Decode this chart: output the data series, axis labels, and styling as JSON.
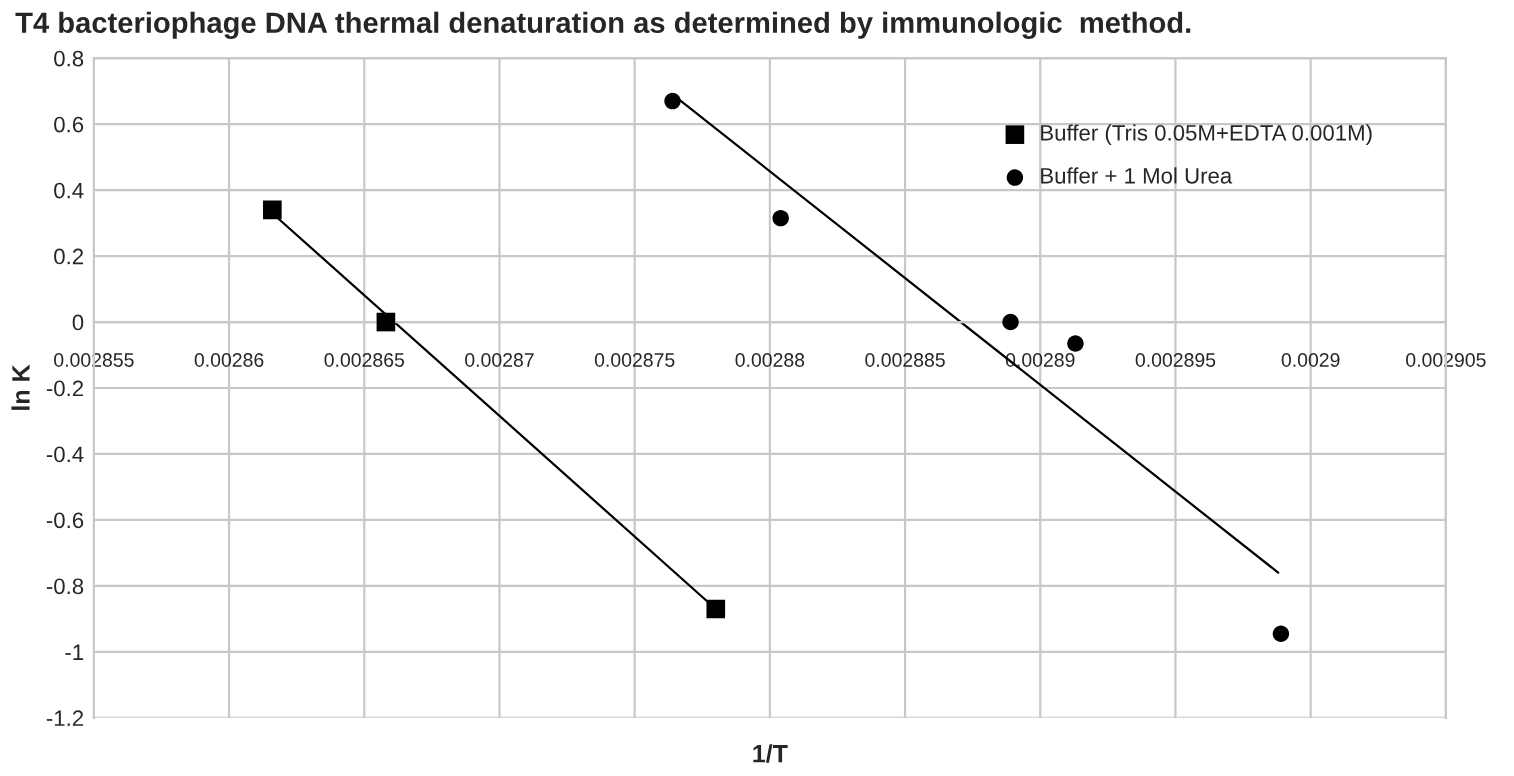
{
  "chart_data": {
    "type": "scatter",
    "title": "T4 bacteriophage DNA thermal denaturation as determined by immunologic  method.",
    "xlabel": "1/T",
    "ylabel": "ln K",
    "series": [
      {
        "name": "Buffer (Tris 0.05M+EDTA 0.001M)",
        "color": "#000000",
        "marker": "square",
        "x": [
          0.0028616,
          0.0028658,
          0.002878
        ],
        "values": [
          0.34,
          0.0,
          -0.87
        ]
      },
      {
        "name": "Buffer + 1 Mol Urea",
        "color": "#000000",
        "marker": "circle",
        "x": [
          0.0028764,
          0.0028804,
          0.0028889,
          0.0028913,
          0.0028989
        ],
        "values": [
          0.67,
          0.315,
          0.0,
          -0.065,
          -0.945
        ]
      },
      {
        "type": "line",
        "color": "#000000",
        "marker": "none",
        "x": [
          0.0028616,
          0.002878
        ],
        "values": [
          0.33,
          -0.87
        ]
      },
      {
        "type": "line",
        "color": "#000000",
        "marker": "none",
        "x": [
          0.0028764,
          0.0028988
        ],
        "values": [
          0.69,
          -0.76
        ]
      }
    ],
    "xlim": [
      0.002855,
      0.002905
    ],
    "xticks": [
      0.002855,
      0.00286,
      0.002865,
      0.00287,
      0.002875,
      0.00288,
      0.002885,
      0.00289,
      0.002895,
      0.0029,
      0.002905
    ],
    "ylim": [
      -1.2,
      0.8
    ],
    "yticks": [
      -1.2,
      -1,
      -0.8,
      -0.6,
      -0.4,
      -0.2,
      0,
      0.2,
      0.4,
      0.6,
      0.8
    ],
    "grid": true,
    "legend": "top right"
  }
}
